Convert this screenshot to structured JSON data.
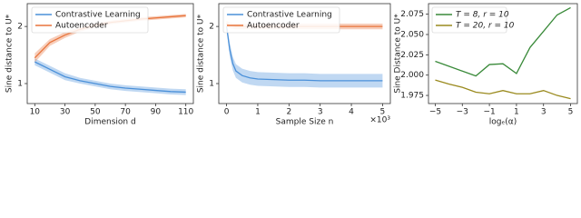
{
  "chart_data": [
    {
      "type": "line",
      "ylabel": "Sine distance to U*",
      "xlabel": "Dimension d",
      "x": [
        10,
        20,
        30,
        40,
        50,
        60,
        70,
        80,
        90,
        100,
        110
      ],
      "series": [
        {
          "name": "Contrastive Learning",
          "color": "#4a90d9",
          "values": [
            1.38,
            1.25,
            1.12,
            1.05,
            1.0,
            0.95,
            0.92,
            0.9,
            0.88,
            0.86,
            0.85
          ],
          "error": [
            0.06,
            0.06,
            0.06,
            0.05,
            0.05,
            0.05,
            0.05,
            0.05,
            0.05,
            0.05,
            0.05
          ]
        },
        {
          "name": "Autoencoder",
          "color": "#e8743b",
          "values": [
            1.45,
            1.72,
            1.85,
            1.95,
            2.02,
            2.07,
            2.1,
            2.13,
            2.15,
            2.17,
            2.19
          ],
          "error": [
            0.08,
            0.06,
            0.05,
            0.04,
            0.04,
            0.03,
            0.03,
            0.03,
            0.03,
            0.03,
            0.03
          ]
        }
      ],
      "xlim": [
        5,
        115
      ],
      "xticks": [
        10,
        30,
        50,
        70,
        90,
        110
      ],
      "ylim": [
        0.65,
        2.4
      ],
      "yticks": [
        1,
        2
      ],
      "legend": "upper center"
    },
    {
      "type": "line",
      "ylabel": "Sine distance to U*",
      "xlabel": "Sample Size n",
      "x_multiplier": "×10³",
      "x": [
        0,
        0.1,
        0.2,
        0.3,
        0.5,
        0.75,
        1,
        1.5,
        2,
        2.5,
        3,
        3.5,
        4,
        4.5,
        5
      ],
      "series": [
        {
          "name": "Contrastive Learning",
          "color": "#4a90d9",
          "values": [
            2.0,
            1.6,
            1.35,
            1.22,
            1.14,
            1.1,
            1.08,
            1.07,
            1.06,
            1.06,
            1.05,
            1.05,
            1.05,
            1.05,
            1.05
          ],
          "error": [
            0.05,
            0.12,
            0.12,
            0.12,
            0.12,
            0.12,
            0.12,
            0.12,
            0.12,
            0.12,
            0.12,
            0.12,
            0.12,
            0.12,
            0.12
          ]
        },
        {
          "name": "Autoencoder",
          "color": "#e8743b",
          "values": [
            2.05,
            2.02,
            2.01,
            2.0,
            2.0,
            2.0,
            2.0,
            2.0,
            2.0,
            2.0,
            2.0,
            2.0,
            2.0,
            2.0,
            2.0
          ],
          "error": [
            0.05,
            0.05,
            0.05,
            0.05,
            0.05,
            0.05,
            0.05,
            0.05,
            0.05,
            0.05,
            0.05,
            0.05,
            0.05,
            0.05,
            0.05
          ]
        }
      ],
      "xlim": [
        -0.25,
        5.25
      ],
      "xticks": [
        0,
        1,
        2,
        3,
        4,
        5
      ],
      "ylim": [
        0.65,
        2.4
      ],
      "yticks": [
        1,
        2
      ],
      "legend": "upper center"
    },
    {
      "type": "line",
      "ylabel": "Sine Distance to U*",
      "xlabel": "logₑ(α)",
      "x": [
        -5,
        -4,
        -3,
        -2,
        -1,
        0,
        1,
        2,
        3,
        4,
        5
      ],
      "series": [
        {
          "name": "T = 8, r = 10",
          "color": "#3a8a3a",
          "values": [
            2.017,
            2.011,
            2.005,
            1.999,
            2.013,
            2.014,
            2.002,
            2.034,
            2.054,
            2.074,
            2.083
          ]
        },
        {
          "name": "T = 20, r = 10",
          "color": "#9a8a1e",
          "values": [
            1.994,
            1.989,
            1.985,
            1.979,
            1.977,
            1.981,
            1.977,
            1.977,
            1.981,
            1.975,
            1.971
          ]
        }
      ],
      "xlim": [
        -5.5,
        5.5
      ],
      "xticks": [
        {
          "value": -5,
          "label": "−5"
        },
        {
          "value": -3,
          "label": "−3"
        },
        {
          "value": -1,
          "label": "−1"
        },
        1,
        3,
        5
      ],
      "ylim": [
        1.965,
        2.088
      ],
      "yticks": [
        1.975,
        {
          "value": 2,
          "label": "2.000"
        },
        2.025,
        {
          "value": 2.05,
          "label": "2.050"
        },
        2.075
      ],
      "legend": "upper left"
    }
  ]
}
